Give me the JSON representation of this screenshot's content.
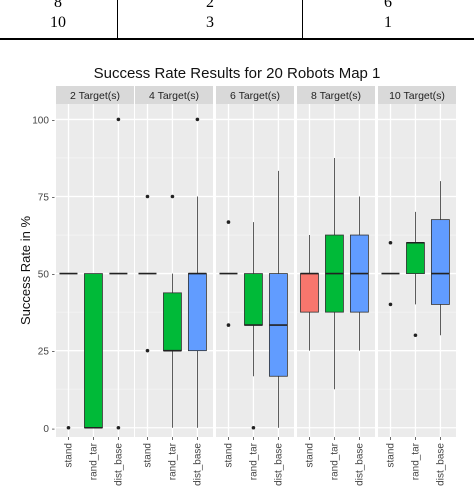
{
  "table": {
    "rows": [
      {
        "c1": "8",
        "c2": "2",
        "c3": "6"
      },
      {
        "c1": "10",
        "c2": "3",
        "c3": "1"
      }
    ]
  },
  "chart_data": {
    "type": "boxplot",
    "title": "Success Rate Results for 20 Robots Map 1",
    "xlabel": "",
    "ylabel": "Success Rate in %",
    "ylim": [
      -3,
      105
    ],
    "yticks": [
      0,
      25,
      50,
      75,
      100
    ],
    "ytick_labels": [
      "0 -",
      "25 -",
      "50 -",
      "75 -",
      "100 -"
    ],
    "categories": [
      "stand",
      "rand_tar",
      "dist_base"
    ],
    "series_colors": {
      "stand": "#f8766d",
      "rand_tar": "#00ba38",
      "dist_base": "#619cff"
    },
    "facets": [
      {
        "label": "2 Target(s)",
        "boxes": [
          {
            "category": "stand",
            "q1": 50,
            "median": 50,
            "q3": 50,
            "whisker_low": 50,
            "whisker_high": 50,
            "outliers": [
              0
            ]
          },
          {
            "category": "rand_tar",
            "q1": 0,
            "median": 0,
            "q3": 50,
            "whisker_low": 0,
            "whisker_high": 50,
            "outliers": []
          },
          {
            "category": "dist_base",
            "q1": 50,
            "median": 50,
            "q3": 50,
            "whisker_low": 50,
            "whisker_high": 50,
            "outliers": [
              0,
              100
            ]
          }
        ]
      },
      {
        "label": "4 Target(s)",
        "boxes": [
          {
            "category": "stand",
            "q1": 50,
            "median": 50,
            "q3": 50,
            "whisker_low": 50,
            "whisker_high": 50,
            "outliers": [
              25,
              75
            ]
          },
          {
            "category": "rand_tar",
            "q1": 25,
            "median": 25,
            "q3": 43.75,
            "whisker_low": 0,
            "whisker_high": 50,
            "outliers": [
              75
            ]
          },
          {
            "category": "dist_base",
            "q1": 25,
            "median": 50,
            "q3": 50,
            "whisker_low": 0,
            "whisker_high": 75,
            "outliers": [
              100
            ]
          }
        ]
      },
      {
        "label": "6 Target(s)",
        "boxes": [
          {
            "category": "stand",
            "q1": 50,
            "median": 50,
            "q3": 50,
            "whisker_low": 50,
            "whisker_high": 50,
            "outliers": [
              33.3,
              66.7
            ]
          },
          {
            "category": "rand_tar",
            "q1": 33.3,
            "median": 33.3,
            "q3": 50,
            "whisker_low": 16.7,
            "whisker_high": 66.7,
            "outliers": [
              0
            ]
          },
          {
            "category": "dist_base",
            "q1": 16.7,
            "median": 33.3,
            "q3": 50,
            "whisker_low": 0,
            "whisker_high": 83.3,
            "outliers": []
          }
        ]
      },
      {
        "label": "8 Target(s)",
        "boxes": [
          {
            "category": "stand",
            "q1": 37.5,
            "median": 50,
            "q3": 50,
            "whisker_low": 25,
            "whisker_high": 62.5,
            "outliers": []
          },
          {
            "category": "rand_tar",
            "q1": 37.5,
            "median": 50,
            "q3": 62.5,
            "whisker_low": 12.5,
            "whisker_high": 87.5,
            "outliers": []
          },
          {
            "category": "dist_base",
            "q1": 37.5,
            "median": 50,
            "q3": 62.5,
            "whisker_low": 25,
            "whisker_high": 75,
            "outliers": []
          }
        ]
      },
      {
        "label": "10 Target(s)",
        "boxes": [
          {
            "category": "stand",
            "q1": 50,
            "median": 50,
            "q3": 50,
            "whisker_low": 50,
            "whisker_high": 50,
            "outliers": [
              40,
              60
            ]
          },
          {
            "category": "rand_tar",
            "q1": 50,
            "median": 60,
            "q3": 60,
            "whisker_low": 40,
            "whisker_high": 70,
            "outliers": [
              30
            ]
          },
          {
            "category": "dist_base",
            "q1": 40,
            "median": 50,
            "q3": 67.5,
            "whisker_low": 30,
            "whisker_high": 80,
            "outliers": []
          }
        ]
      }
    ]
  }
}
